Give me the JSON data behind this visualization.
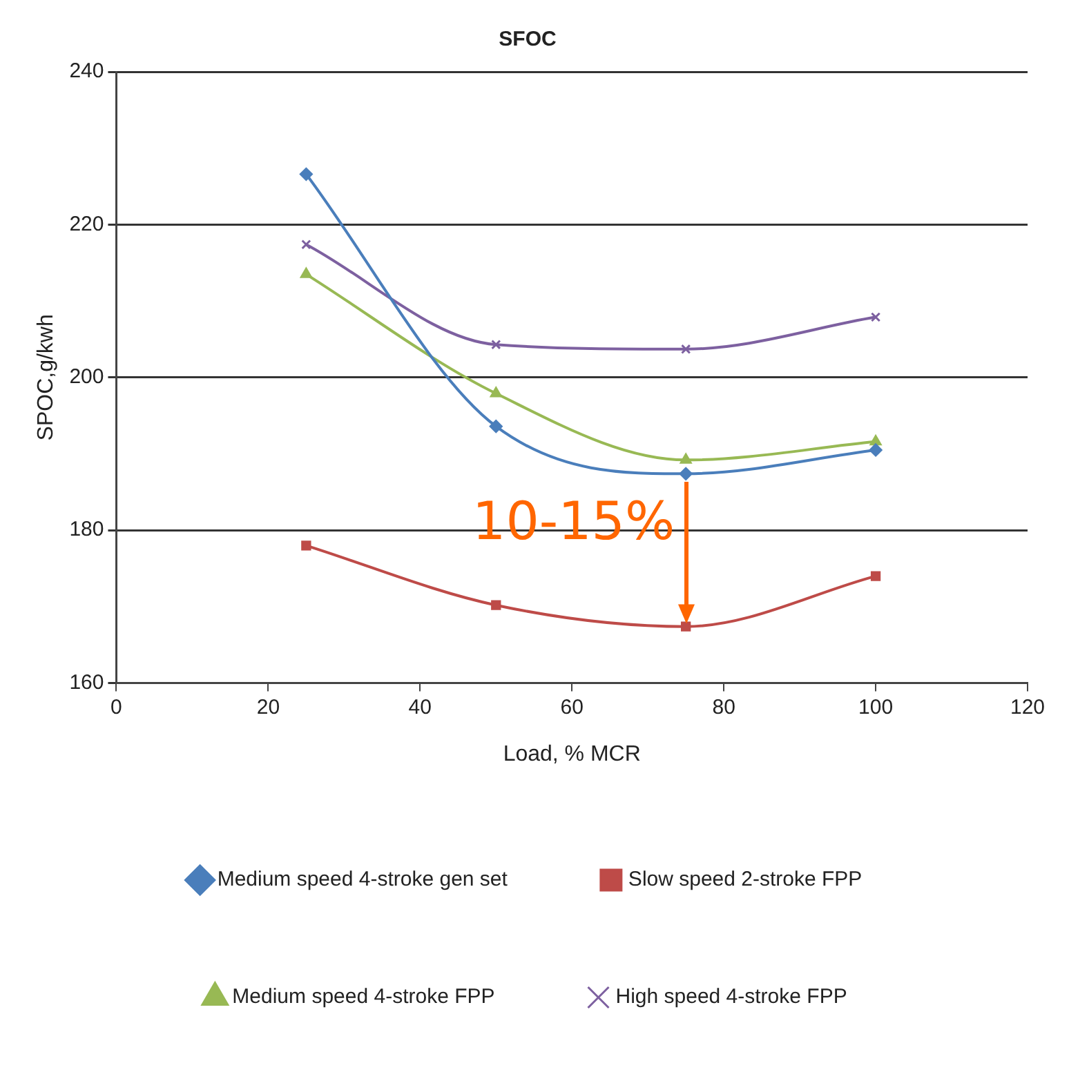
{
  "chart_data": {
    "type": "line",
    "title": "SFOC",
    "xlabel": "Load, % MCR",
    "ylabel": "SPOC,g/kwh",
    "x": [
      25,
      50,
      75,
      100
    ],
    "series": [
      {
        "name": "Medium speed 4-stroke gen set",
        "color": "#4a7ebb",
        "marker": "diamond",
        "values": [
          226.6,
          193.6,
          187.4,
          190.5
        ]
      },
      {
        "name": "Slow speed 2-stroke FPP",
        "color": "#be4b48",
        "marker": "square",
        "values": [
          178.0,
          170.2,
          167.4,
          174.0
        ]
      },
      {
        "name": "Medium speed 4-stroke FPP",
        "color": "#98b954",
        "marker": "triangle",
        "values": [
          213.5,
          197.9,
          189.2,
          191.6
        ]
      },
      {
        "name": "High speed 4-stroke FPP",
        "color": "#7d60a0",
        "marker": "cross",
        "values": [
          217.4,
          204.3,
          203.7,
          207.9
        ]
      }
    ],
    "xlim": [
      0,
      120
    ],
    "xticks": [
      0,
      20,
      40,
      60,
      80,
      100,
      120
    ],
    "ylim": [
      160,
      240
    ],
    "yticks": [
      160,
      180,
      200,
      220,
      240
    ],
    "grid": "y",
    "legend": "bottom",
    "line_style": "solid",
    "annotations": [
      {
        "text": "10-15%",
        "x": 75,
        "y": 187.4
      }
    ]
  }
}
